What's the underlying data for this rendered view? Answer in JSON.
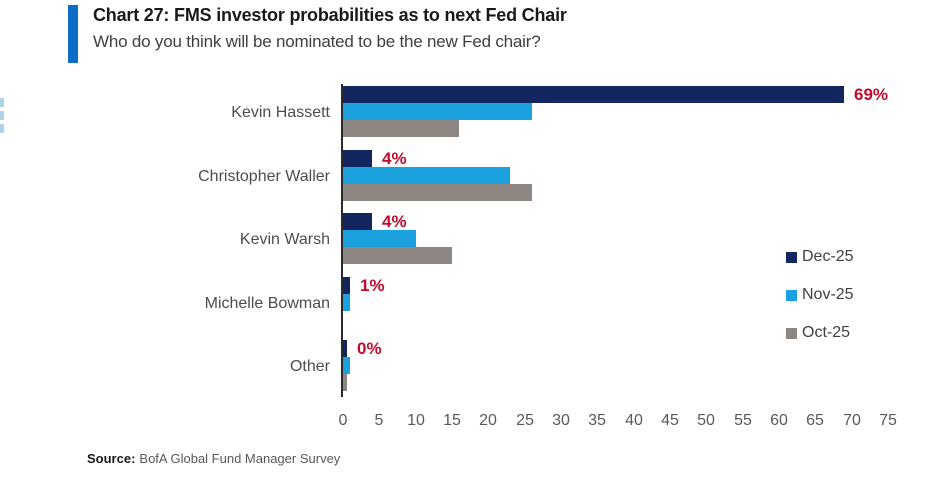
{
  "header": {
    "accent_color": "#0d6cc7"
  },
  "source": {
    "label": "Source:",
    "text": "BofA Global Fund Manager Survey"
  },
  "chart_data": {
    "type": "bar",
    "orientation": "horizontal",
    "title": "Chart 27: FMS investor probabilities as to next Fed Chair",
    "subtitle": "Who do you think will be nominated to be the new Fed chair?",
    "categories": [
      "Kevin Hassett",
      "Christopher Waller",
      "Kevin Warsh",
      "Michelle Bowman",
      "Other"
    ],
    "series": [
      {
        "name": "Dec-25",
        "color": "#13265f",
        "values": [
          69,
          4,
          4,
          1,
          0.5
        ]
      },
      {
        "name": "Nov-25",
        "color": "#1ba2de",
        "values": [
          26,
          23,
          10,
          1,
          1
        ]
      },
      {
        "name": "Oct-25",
        "color": "#8e8683",
        "values": [
          16,
          26,
          15,
          0,
          0.5
        ]
      }
    ],
    "data_labels": [
      "69%",
      "4%",
      "4%",
      "1%",
      "0%"
    ],
    "data_label_color": "#c00b2d",
    "xlim": [
      0,
      75
    ],
    "xticks": [
      0,
      5,
      10,
      15,
      20,
      25,
      30,
      35,
      40,
      45,
      50,
      55,
      60,
      65,
      70,
      75
    ],
    "grid": false,
    "legend_position": "right"
  }
}
